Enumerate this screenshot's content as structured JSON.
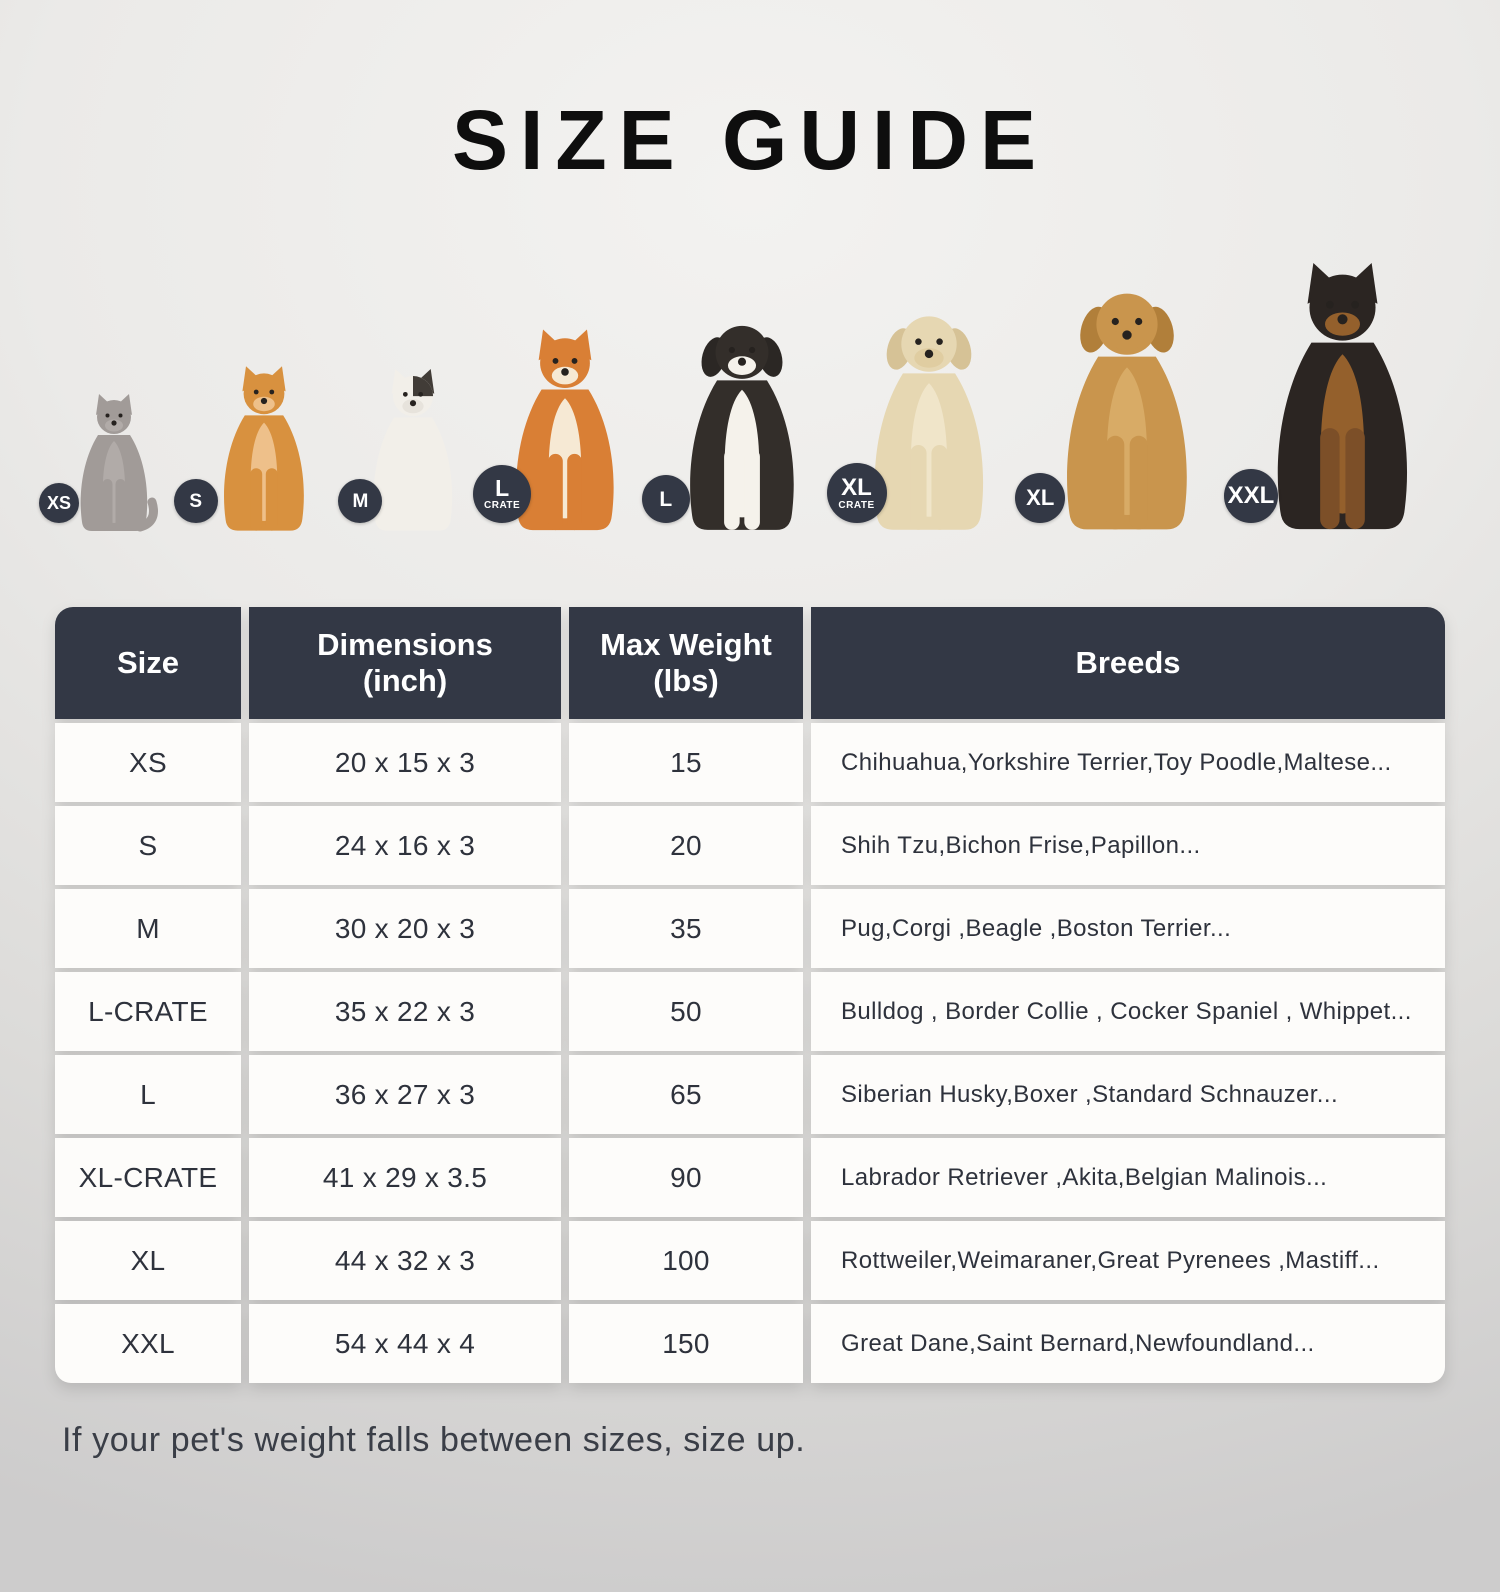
{
  "title": "SIZE GUIDE",
  "note": "If your pet's weight falls between sizes, size up.",
  "colors": {
    "header_bg": "#333845",
    "badge_bg": "#333845",
    "row_bg": "#fdfcfa",
    "title_text": "#0e0e0e",
    "cell_text": "#2e323c",
    "note_text": "#3a3e47"
  },
  "lineup": [
    {
      "badge": "XS",
      "badge_sub": "",
      "species": "gray-cat",
      "kind": "cat",
      "ears": "point",
      "tail": true,
      "body": "#a19b98",
      "chest": "#b1aba8",
      "muzzle": "#b1aba8"
    },
    {
      "badge": "S",
      "badge_sub": "",
      "species": "pomeranian",
      "kind": "dog",
      "ears": "point",
      "body": "#d8913f",
      "chest": "#eec08a",
      "muzzle": "#eec08a"
    },
    {
      "badge": "M",
      "badge_sub": "",
      "species": "french-bulldog",
      "kind": "dog",
      "ears": "point",
      "body": "#f2efe9",
      "chest": "#f2efe9",
      "muzzle": "#e7e3dc",
      "patch": "#413c37",
      "earR": "#413c37"
    },
    {
      "badge": "L",
      "badge_sub": "CRATE",
      "species": "shiba-inu",
      "kind": "dog",
      "ears": "point",
      "body": "#d97f35",
      "chest": "#f6e9d4",
      "muzzle": "#f6e9d4"
    },
    {
      "badge": "L",
      "badge_sub": "",
      "species": "border-collie",
      "kind": "dog",
      "ears": "floppy",
      "body": "#332e2a",
      "chest": "#f5f2eb",
      "legs": "#f5f2eb",
      "muzzle": "#f5f2eb",
      "earF": "#2b2724"
    },
    {
      "badge": "XL",
      "badge_sub": "CRATE",
      "species": "labrador-retriever",
      "kind": "dog",
      "ears": "floppy",
      "body": "#e6d7b2",
      "chest": "#f0e5c9",
      "muzzle": "#e0cda1",
      "earF": "#d6c296"
    },
    {
      "badge": "XL",
      "badge_sub": "",
      "species": "golden-retriever",
      "kind": "dog",
      "ears": "floppy",
      "body": "#c9954d",
      "chest": "#d8ab66",
      "muzzle": "#c9954d",
      "earF": "#b17f3a"
    },
    {
      "badge": "XXL",
      "badge_sub": "",
      "species": "doberman",
      "kind": "dog",
      "ears": "point",
      "body": "#2b2522",
      "chest": "#94602c",
      "muzzle": "#94602c",
      "legs": "#7c4f28"
    }
  ],
  "table": {
    "columns": [
      "Size",
      "Dimensions\n(inch)",
      "Max Weight\n(lbs)",
      "Breeds"
    ],
    "rows": [
      {
        "size": "XS",
        "dimensions": "20 x 15 x 3",
        "max_weight": "15",
        "breeds": "Chihuahua,Yorkshire Terrier,Toy Poodle,Maltese..."
      },
      {
        "size": "S",
        "dimensions": "24 x 16 x 3",
        "max_weight": "20",
        "breeds": "Shih Tzu,Bichon Frise,Papillon..."
      },
      {
        "size": "M",
        "dimensions": "30 x 20 x 3",
        "max_weight": "35",
        "breeds": "Pug,Corgi ,Beagle ,Boston Terrier..."
      },
      {
        "size": "L-CRATE",
        "dimensions": "35 x 22 x 3",
        "max_weight": "50",
        "breeds": "Bulldog , Border Collie , Cocker Spaniel , Whippet..."
      },
      {
        "size": "L",
        "dimensions": "36 x 27 x 3",
        "max_weight": "65",
        "breeds": "Siberian Husky,Boxer ,Standard Schnauzer..."
      },
      {
        "size": "XL-CRATE",
        "dimensions": "41 x 29 x 3.5",
        "max_weight": "90",
        "breeds": "Labrador Retriever ,Akita,Belgian Malinois..."
      },
      {
        "size": "XL",
        "dimensions": "44 x 32 x 3",
        "max_weight": "100",
        "breeds": "Rottweiler,Weimaraner,Great Pyrenees ,Mastiff..."
      },
      {
        "size": "XXL",
        "dimensions": "54 x 44 x 4",
        "max_weight": "150",
        "breeds": "Great Dane,Saint Bernard,Newfoundland..."
      }
    ]
  },
  "chart_data": {
    "type": "table",
    "title": "SIZE GUIDE",
    "columns": [
      "Size",
      "Dimensions (inch)",
      "Max Weight (lbs)",
      "Breeds"
    ],
    "rows": [
      [
        "XS",
        "20 x 15 x 3",
        15,
        "Chihuahua,Yorkshire Terrier,Toy Poodle,Maltese..."
      ],
      [
        "S",
        "24 x 16 x 3",
        20,
        "Shih Tzu,Bichon Frise,Papillon..."
      ],
      [
        "M",
        "30 x 20 x 3",
        35,
        "Pug,Corgi ,Beagle ,Boston Terrier..."
      ],
      [
        "L-CRATE",
        "35 x 22 x 3",
        50,
        "Bulldog , Border Collie , Cocker Spaniel , Whippet..."
      ],
      [
        "L",
        "36 x 27 x 3",
        65,
        "Siberian Husky,Boxer ,Standard Schnauzer..."
      ],
      [
        "XL-CRATE",
        "41 x 29 x 3.5",
        90,
        "Labrador Retriever ,Akita,Belgian Malinois..."
      ],
      [
        "XL",
        "44 x 32 x 3",
        100,
        "Rottweiler,Weimaraner,Great Pyrenees ,Mastiff..."
      ],
      [
        "XXL",
        "54 x 44 x 4",
        150,
        "Great Dane,Saint Bernard,Newfoundland..."
      ]
    ],
    "footnote": "If your pet's weight falls between sizes, size up."
  }
}
